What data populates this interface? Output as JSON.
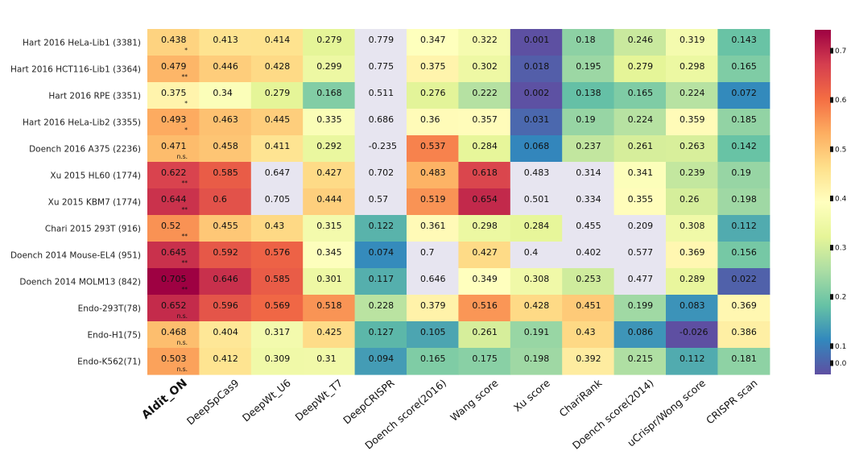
{
  "chart_data": {
    "type": "heatmap",
    "title": "",
    "rows": [
      "Hart 2016 HeLa-Lib1 (3381)",
      "Hart 2016 HCT116-Lib1 (3364)",
      "Hart 2016 RPE (3351)",
      "Hart 2016 HeLa-Lib2 (3355)",
      "Doench 2016 A375 (2236)",
      "Xu 2015 HL60 (1774)",
      "Xu 2015 KBM7 (1774)",
      "Chari 2015 293T (916)",
      "Doench 2014 Mouse-EL4 (951)",
      "Doench 2014 MOLM13 (842)",
      "Endo-293T(78)",
      "Endo-H1(75)",
      "Endo-K562(71)"
    ],
    "columns": [
      "AIdit_ON",
      "DeepSpCas9",
      "DeepWt_U6",
      "DeepWt_T7",
      "DeepCRISPR",
      "Doench score(2016)",
      "Wang score",
      "Xu score",
      "ChariRank",
      "Doench score(2014)",
      "uCrispr/Wong score",
      "CRISPR scan"
    ],
    "values": [
      [
        "0.438",
        "0.413",
        "0.414",
        "0.279",
        "0.779",
        "0.347",
        "0.322",
        "0.001",
        "0.18",
        "0.246",
        "0.319",
        "0.143"
      ],
      [
        "0.479",
        "0.446",
        "0.428",
        "0.299",
        "0.775",
        "0.375",
        "0.302",
        "0.018",
        "0.195",
        "0.279",
        "0.298",
        "0.165"
      ],
      [
        "0.375",
        "0.34",
        "0.279",
        "0.168",
        "0.511",
        "0.276",
        "0.222",
        "0.002",
        "0.138",
        "0.165",
        "0.224",
        "0.072"
      ],
      [
        "0.493",
        "0.463",
        "0.445",
        "0.335",
        "0.686",
        "0.36",
        "0.357",
        "0.031",
        "0.19",
        "0.224",
        "0.359",
        "0.185"
      ],
      [
        "0.471",
        "0.458",
        "0.411",
        "0.292",
        "-0.235",
        "0.537",
        "0.284",
        "0.068",
        "0.237",
        "0.261",
        "0.263",
        "0.142"
      ],
      [
        "0.622",
        "0.585",
        "0.647",
        "0.427",
        "0.702",
        "0.483",
        "0.618",
        "0.483",
        "0.314",
        "0.341",
        "0.239",
        "0.19"
      ],
      [
        "0.644",
        "0.6",
        "0.705",
        "0.444",
        "0.57",
        "0.519",
        "0.654",
        "0.501",
        "0.334",
        "0.355",
        "0.26",
        "0.198"
      ],
      [
        "0.52",
        "0.455",
        "0.43",
        "0.315",
        "0.122",
        "0.361",
        "0.298",
        "0.284",
        "0.455",
        "0.209",
        "0.308",
        "0.112"
      ],
      [
        "0.645",
        "0.592",
        "0.576",
        "0.345",
        "0.074",
        "0.7",
        "0.427",
        "0.4",
        "0.402",
        "0.577",
        "0.369",
        "0.156"
      ],
      [
        "0.705",
        "0.646",
        "0.585",
        "0.301",
        "0.117",
        "0.646",
        "0.349",
        "0.308",
        "0.253",
        "0.477",
        "0.289",
        "0.022"
      ],
      [
        "0.652",
        "0.596",
        "0.569",
        "0.518",
        "0.228",
        "0.379",
        "0.516",
        "0.428",
        "0.451",
        "0.199",
        "0.083",
        "0.369"
      ],
      [
        "0.468",
        "0.404",
        "0.317",
        "0.425",
        "0.127",
        "0.105",
        "0.261",
        "0.191",
        "0.43",
        "0.086",
        "-0.026",
        "0.386"
      ],
      [
        "0.503",
        "0.412",
        "0.309",
        "0.31",
        "0.094",
        "0.165",
        "0.175",
        "0.198",
        "0.392",
        "0.215",
        "0.112",
        "0.181"
      ]
    ],
    "masked_cells": [
      [
        0,
        4
      ],
      [
        1,
        4
      ],
      [
        2,
        4
      ],
      [
        3,
        4
      ],
      [
        4,
        4
      ],
      [
        5,
        2
      ],
      [
        5,
        4
      ],
      [
        6,
        2
      ],
      [
        6,
        4
      ],
      [
        8,
        5
      ],
      [
        9,
        5
      ],
      [
        5,
        7
      ],
      [
        6,
        7
      ],
      [
        8,
        7
      ],
      [
        5,
        8
      ],
      [
        6,
        8
      ],
      [
        7,
        8
      ],
      [
        8,
        8
      ],
      [
        8,
        9
      ],
      [
        9,
        9
      ],
      [
        7,
        9
      ]
    ],
    "significance": [
      "*",
      "**",
      "*",
      "*",
      "n.s.",
      "**",
      "**",
      "**",
      "**",
      "**",
      "n.s.",
      "n.s.",
      "n.s."
    ],
    "colorbar": {
      "min": 0.0,
      "max": 0.7,
      "ticks": [
        "0.0",
        "0.1",
        "0.2",
        "0.3",
        "0.4",
        "0.5",
        "0.6",
        "0.7"
      ],
      "colormap": "Spectral_r"
    }
  },
  "colors": {
    "masked": "#e7e5f0",
    "text": "#111111",
    "colormap_stops": [
      "#5e4fa2",
      "#3288bd",
      "#66c2a5",
      "#abdda4",
      "#e6f598",
      "#ffffbf",
      "#fee08b",
      "#fdae61",
      "#f46d43",
      "#d53e4f",
      "#9e0142"
    ]
  }
}
